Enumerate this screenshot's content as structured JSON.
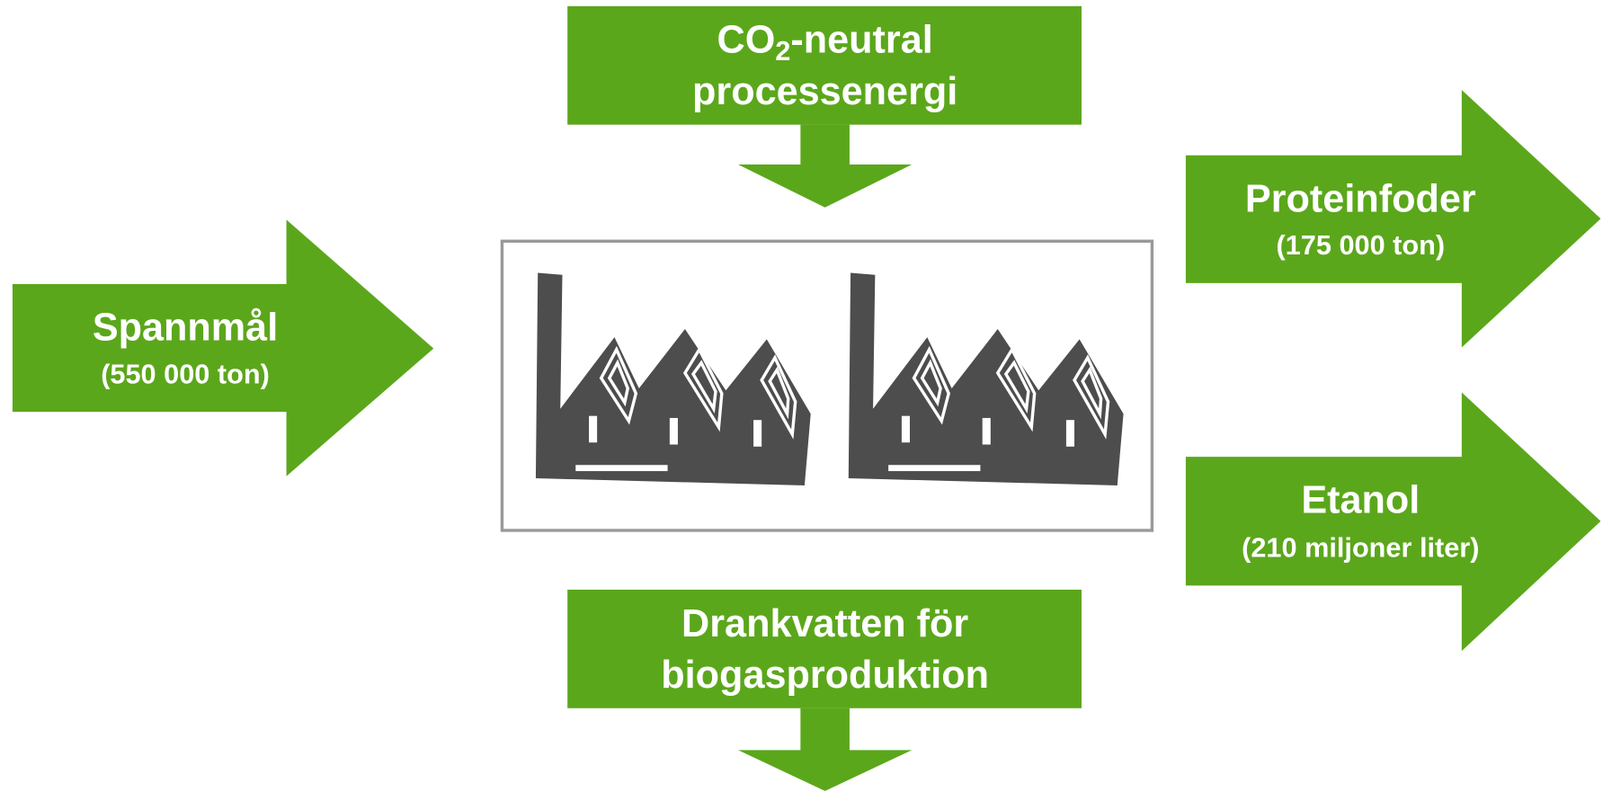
{
  "input": {
    "title": "Spannmål",
    "detail": "(550 000 ton)"
  },
  "energy": {
    "prefix": "CO",
    "subscript": "2",
    "suffix": "-neutral",
    "line2": "processenergi"
  },
  "outputs": [
    {
      "title": "Proteinfoder",
      "detail": "(175 000 ton)"
    },
    {
      "title": "Etanol",
      "detail": "(210 miljoner liter)"
    }
  ],
  "byproduct": {
    "line1": "Drankvatten för",
    "line2": "biogasproduktion"
  }
}
